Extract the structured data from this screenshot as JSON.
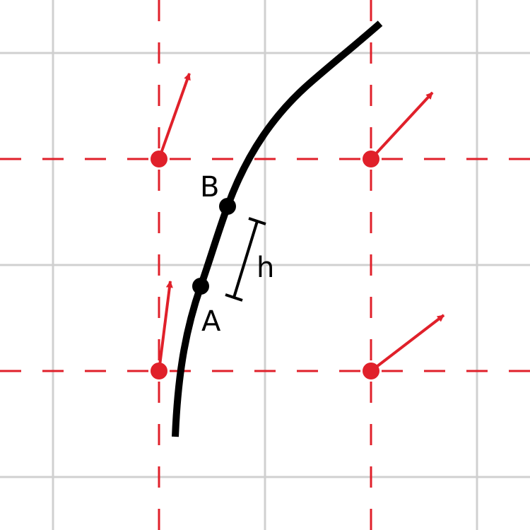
{
  "labels": {
    "point_a": "A",
    "point_b": "B",
    "step": "h"
  },
  "colors": {
    "background": "#ffffff",
    "grid": "#d0d0d0",
    "dashed_grid": "#e0202a",
    "arrow": "#e0202a",
    "curve": "#000000"
  },
  "vectors": [
    {
      "name": "top-left-vector"
    },
    {
      "name": "top-right-vector"
    },
    {
      "name": "bottom-left-vector"
    },
    {
      "name": "bottom-right-vector"
    }
  ]
}
